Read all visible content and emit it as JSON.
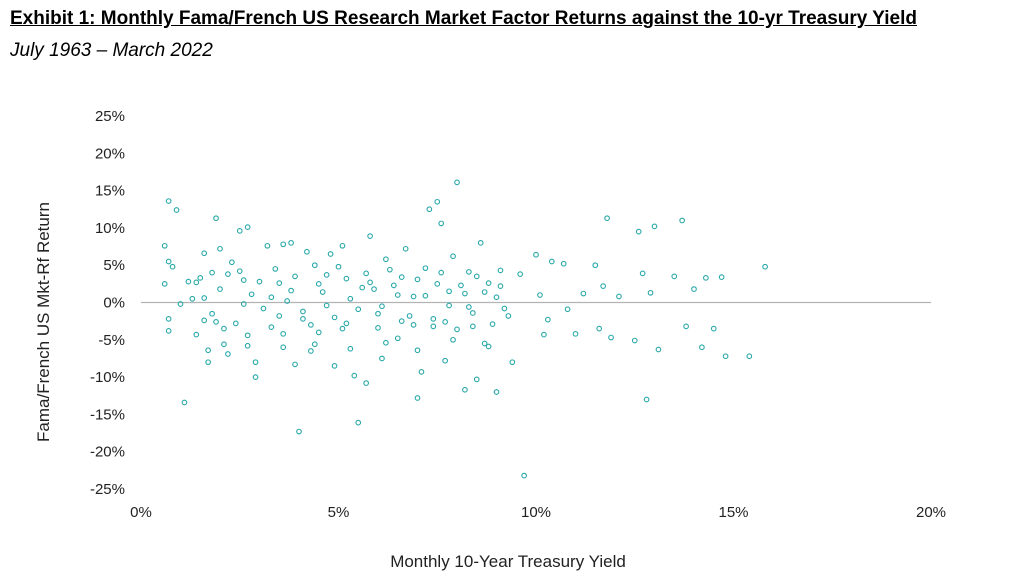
{
  "header": {
    "title": "Exhibit 1: Monthly Fama/French US Research Market Factor Returns against the 10-yr Treasury Yield",
    "subtitle": "July 1963 – March 2022"
  },
  "chart_data": {
    "type": "scatter",
    "xlabel": "Monthly 10-Year Treasury Yield",
    "ylabel": "Fama/French US Mkt-Rf Return",
    "xlim": [
      0,
      20
    ],
    "ylim": [
      -25,
      25
    ],
    "xticks": [
      "0%",
      "5%",
      "10%",
      "15%",
      "20%"
    ],
    "yticks": [
      "25%",
      "20%",
      "15%",
      "10%",
      "5%",
      "0%",
      "-5%",
      "-10%",
      "-15%",
      "-20%",
      "-25%"
    ],
    "grid": false,
    "marker_color": "#2aa8a8",
    "points": [
      [
        0.6,
        7.6
      ],
      [
        0.7,
        13.6
      ],
      [
        0.7,
        5.5
      ],
      [
        0.9,
        12.4
      ],
      [
        0.8,
        4.8
      ],
      [
        0.6,
        2.5
      ],
      [
        0.7,
        -2.2
      ],
      [
        0.7,
        -3.8
      ],
      [
        1.1,
        -13.4
      ],
      [
        1.0,
        -0.2
      ],
      [
        1.2,
        2.8
      ],
      [
        1.4,
        2.7
      ],
      [
        1.4,
        -4.3
      ],
      [
        1.6,
        6.6
      ],
      [
        1.6,
        0.6
      ],
      [
        1.7,
        -6.4
      ],
      [
        1.7,
        -8.0
      ],
      [
        1.9,
        11.3
      ],
      [
        1.8,
        4.0
      ],
      [
        2.0,
        7.2
      ],
      [
        1.9,
        -2.6
      ],
      [
        2.1,
        -5.6
      ],
      [
        2.2,
        -6.9
      ],
      [
        2.3,
        5.4
      ],
      [
        2.5,
        9.6
      ],
      [
        2.6,
        3.0
      ],
      [
        2.7,
        10.1
      ],
      [
        2.6,
        -0.2
      ],
      [
        2.7,
        -4.4
      ],
      [
        2.9,
        -8.0
      ],
      [
        2.9,
        -10.0
      ],
      [
        3.0,
        2.8
      ],
      [
        3.2,
        7.6
      ],
      [
        3.3,
        0.7
      ],
      [
        3.5,
        -1.8
      ],
      [
        3.6,
        7.8
      ],
      [
        3.6,
        -4.2
      ],
      [
        3.8,
        8.0
      ],
      [
        3.8,
        1.6
      ],
      [
        3.9,
        -8.3
      ],
      [
        4.0,
        -17.3
      ],
      [
        4.2,
        6.8
      ],
      [
        4.1,
        -2.2
      ],
      [
        4.3,
        -6.5
      ],
      [
        4.5,
        2.5
      ],
      [
        4.5,
        -4.0
      ],
      [
        4.8,
        6.5
      ],
      [
        4.7,
        -0.4
      ],
      [
        4.9,
        -8.5
      ],
      [
        5.1,
        7.6
      ],
      [
        5.2,
        3.2
      ],
      [
        5.1,
        -3.5
      ],
      [
        5.4,
        -9.8
      ],
      [
        5.6,
        2.0
      ],
      [
        5.5,
        -16.1
      ],
      [
        5.8,
        8.9
      ],
      [
        5.7,
        -10.8
      ],
      [
        6.0,
        -1.5
      ],
      [
        6.2,
        5.8
      ],
      [
        6.1,
        -7.5
      ],
      [
        6.4,
        2.3
      ],
      [
        6.5,
        -4.8
      ],
      [
        6.7,
        7.2
      ],
      [
        6.6,
        -2.5
      ],
      [
        6.9,
        0.8
      ],
      [
        7.0,
        -12.8
      ],
      [
        7.2,
        4.6
      ],
      [
        7.1,
        -9.3
      ],
      [
        7.3,
        12.5
      ],
      [
        7.5,
        13.5
      ],
      [
        7.4,
        -3.2
      ],
      [
        7.6,
        10.6
      ],
      [
        7.8,
        1.5
      ],
      [
        7.7,
        -7.8
      ],
      [
        7.9,
        6.2
      ],
      [
        8.0,
        16.1
      ],
      [
        8.0,
        -3.6
      ],
      [
        8.2,
        -11.7
      ],
      [
        8.3,
        4.1
      ],
      [
        8.4,
        -1.4
      ],
      [
        8.6,
        8.0
      ],
      [
        8.5,
        -10.3
      ],
      [
        8.8,
        2.6
      ],
      [
        8.7,
        -5.5
      ],
      [
        9.0,
        -12.0
      ],
      [
        9.1,
        4.3
      ],
      [
        9.2,
        -0.8
      ],
      [
        9.4,
        -8.0
      ],
      [
        9.6,
        3.8
      ],
      [
        9.7,
        -23.2
      ],
      [
        10.0,
        6.4
      ],
      [
        10.1,
        1.0
      ],
      [
        10.2,
        -4.3
      ],
      [
        10.4,
        5.5
      ],
      [
        10.3,
        -2.3
      ],
      [
        10.7,
        5.2
      ],
      [
        10.8,
        -0.9
      ],
      [
        11.0,
        -4.2
      ],
      [
        11.2,
        1.2
      ],
      [
        11.5,
        5.0
      ],
      [
        11.6,
        -3.5
      ],
      [
        11.8,
        11.3
      ],
      [
        11.7,
        2.2
      ],
      [
        11.9,
        -4.7
      ],
      [
        12.1,
        0.8
      ],
      [
        12.5,
        -5.1
      ],
      [
        12.6,
        9.5
      ],
      [
        12.7,
        3.9
      ],
      [
        12.8,
        -13.0
      ],
      [
        12.9,
        1.3
      ],
      [
        13.0,
        10.2
      ],
      [
        13.1,
        -6.3
      ],
      [
        13.5,
        3.5
      ],
      [
        13.7,
        11.0
      ],
      [
        13.8,
        -3.2
      ],
      [
        14.0,
        1.8
      ],
      [
        14.2,
        -6.0
      ],
      [
        14.3,
        3.3
      ],
      [
        14.5,
        -3.5
      ],
      [
        14.7,
        3.4
      ],
      [
        14.8,
        -7.2
      ],
      [
        15.4,
        -7.2
      ],
      [
        15.8,
        4.8
      ],
      [
        1.3,
        0.5
      ],
      [
        1.5,
        3.3
      ],
      [
        1.8,
        -1.5
      ],
      [
        2.0,
        1.8
      ],
      [
        2.2,
        3.8
      ],
      [
        2.4,
        -2.8
      ],
      [
        2.8,
        1.1
      ],
      [
        3.1,
        -0.8
      ],
      [
        3.4,
        4.5
      ],
      [
        3.7,
        0.2
      ],
      [
        3.9,
        3.5
      ],
      [
        4.1,
        -1.2
      ],
      [
        4.4,
        5.0
      ],
      [
        4.6,
        1.4
      ],
      [
        4.9,
        -2.0
      ],
      [
        5.0,
        4.8
      ],
      [
        5.3,
        0.5
      ],
      [
        5.5,
        -0.9
      ],
      [
        5.7,
        3.9
      ],
      [
        5.9,
        1.8
      ],
      [
        6.1,
        -0.5
      ],
      [
        6.3,
        4.4
      ],
      [
        6.5,
        1.0
      ],
      [
        6.8,
        -1.8
      ],
      [
        7.0,
        3.1
      ],
      [
        7.2,
        0.9
      ],
      [
        7.4,
        -2.2
      ],
      [
        7.6,
        4.0
      ],
      [
        7.8,
        -0.4
      ],
      [
        8.1,
        2.3
      ],
      [
        8.3,
        -0.6
      ],
      [
        8.5,
        3.5
      ],
      [
        8.7,
        1.4
      ],
      [
        8.9,
        -2.9
      ],
      [
        9.1,
        2.2
      ],
      [
        9.3,
        -1.8
      ],
      [
        2.1,
        -3.5
      ],
      [
        3.3,
        -3.3
      ],
      [
        4.3,
        -3.0
      ],
      [
        5.2,
        -2.8
      ],
      [
        6.0,
        -3.4
      ],
      [
        6.9,
        -3.0
      ],
      [
        7.7,
        -2.6
      ],
      [
        8.4,
        -3.2
      ],
      [
        2.5,
        4.2
      ],
      [
        3.5,
        2.6
      ],
      [
        4.7,
        3.7
      ],
      [
        5.8,
        2.7
      ],
      [
        6.6,
        3.4
      ],
      [
        7.5,
        2.5
      ],
      [
        8.2,
        1.2
      ],
      [
        9.0,
        0.7
      ],
      [
        1.6,
        -2.4
      ],
      [
        2.7,
        -5.8
      ],
      [
        3.6,
        -6.0
      ],
      [
        4.4,
        -5.6
      ],
      [
        5.3,
        -6.2
      ],
      [
        6.2,
        -5.4
      ],
      [
        7.0,
        -6.4
      ],
      [
        7.9,
        -5.0
      ],
      [
        8.8,
        -5.9
      ]
    ]
  }
}
